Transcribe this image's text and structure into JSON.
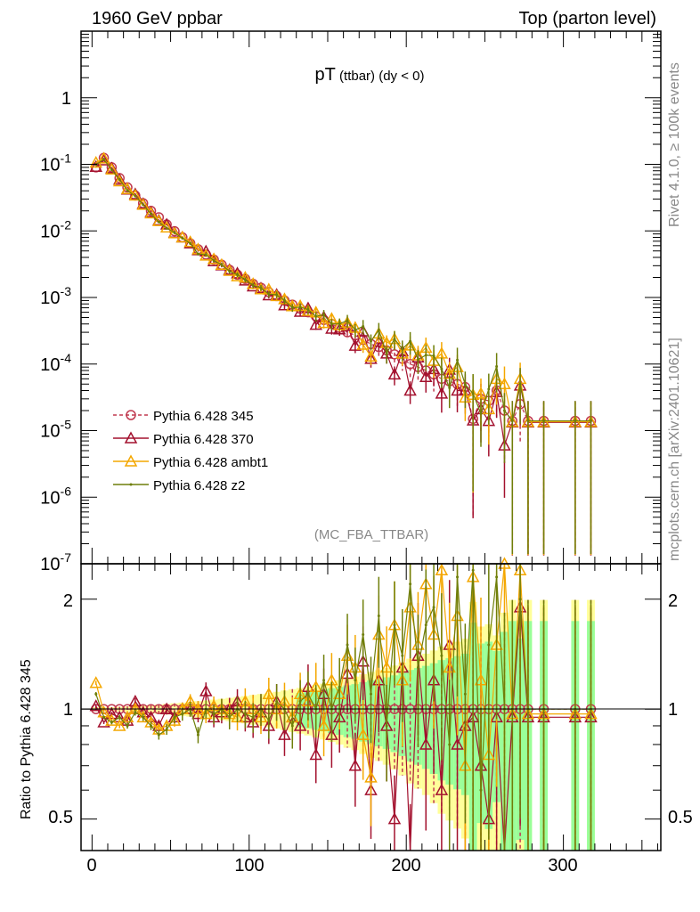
{
  "header": {
    "left": "1960 GeV ppbar",
    "right": "Top (parton level)",
    "title_main": "pT",
    "title_sub": " (ttbar) (dy < 0)",
    "side_top": "Rivet 4.1.0, ≥ 100k events",
    "side_bottom": "mcplots.cern.ch [arXiv:2401.10621]",
    "analysis": "(MC_FBA_TTBAR)"
  },
  "chart_data": {
    "type": "line",
    "xlim": [
      -7,
      362
    ],
    "ylim_main": [
      1e-07,
      10
    ],
    "ylim_ratio": [
      0.41,
      2.5
    ],
    "yscale": "log",
    "ylabel_ratio": "Ratio to Pythia 6.428 345",
    "x_ticks": [
      "0",
      "100",
      "200",
      "300"
    ],
    "y_ticks_main": [
      "1",
      "10^-1",
      "10^-2",
      "10^-3",
      "10^-4",
      "10^-5",
      "10^-6",
      "10^-7"
    ],
    "y_ticks_ratio": [
      "0.5",
      "1",
      "2"
    ],
    "legend_position": "center-left",
    "colors": {
      "ref": "#c0394f",
      "s370": "#a3112e",
      "ambt1": "#f4a700",
      "z2": "#6f7f0a",
      "band_yellow": "#ffff99",
      "band_green": "#99ff99"
    },
    "bin_width": 5,
    "x_first_center": 2.5,
    "reference": {
      "name": "Pythia 6.428 345",
      "values": [
        0.09,
        0.125,
        0.09,
        0.062,
        0.045,
        0.034,
        0.026,
        0.02,
        0.016,
        0.0125,
        0.0099,
        0.008,
        0.0065,
        0.0053,
        0.0044,
        0.0037,
        0.0031,
        0.0026,
        0.0022,
        0.0019,
        0.0016,
        0.0014,
        0.0012,
        0.00105,
        0.0009,
        0.00078,
        0.00068,
        0.0006,
        0.00052,
        0.00046,
        0.0004,
        0.00035,
        0.0003,
        0.00027,
        0.00023,
        0.0002,
        0.00018,
        0.00016,
        0.00014,
        0.00012,
        0.0001,
        9e-05,
        8e-05,
        7e-05,
        6e-05,
        5.5e-05,
        5e-05,
        4.5e-05,
        1.5e-05,
        3e-05,
        2.8e-05,
        4e-05,
        2e-05,
        1.4e-05,
        2.5e-05,
        1.4e-05,
        null,
        1.4e-05,
        null,
        null,
        null,
        1.4e-05,
        null,
        1.4e-05
      ]
    },
    "series": [
      {
        "name": "Pythia 6.428 370",
        "key": "s370",
        "marker": "triangle",
        "ratio": [
          1.02,
          0.92,
          0.97,
          0.95,
          0.93,
          1.05,
          0.98,
          0.95,
          0.9,
          1.0,
          0.95,
          1.0,
          1.0,
          0.97,
          1.12,
          0.95,
          0.98,
          1.0,
          1.05,
          0.95,
          0.92,
          0.98,
          0.9,
          1.05,
          0.85,
          0.95,
          0.9,
          1.15,
          0.75,
          1.1,
          0.85,
          0.95,
          1.25,
          0.7,
          1.35,
          0.6,
          1.2,
          0.9,
          0.5,
          1.3,
          0.4,
          1.4,
          0.8,
          1.2,
          0.6,
          1.5,
          0.8,
          0.9,
          0.95,
          0.7,
          0.5,
          0.95,
          0.3,
          0.95,
          1.9,
          0.95,
          null,
          0.95,
          null,
          null,
          null,
          0.95,
          null,
          0.95
        ]
      },
      {
        "name": "Pythia 6.428 ambt1",
        "key": "ambt1",
        "marker": "triangle",
        "ratio": [
          1.18,
          0.98,
          0.93,
          0.9,
          0.95,
          1.0,
          0.95,
          0.92,
          0.88,
          0.9,
          0.93,
          1.0,
          1.05,
          1.0,
          0.97,
          1.02,
          1.0,
          0.97,
          0.95,
          1.05,
          1.0,
          0.95,
          1.1,
          1.0,
          1.05,
          0.95,
          1.1,
          1.05,
          1.15,
          0.9,
          1.2,
          1.1,
          1.4,
          1.3,
          0.85,
          0.65,
          1.6,
          1.3,
          1.7,
          1.2,
          1.9,
          1.5,
          2.2,
          1.6,
          2.4,
          1.3,
          1.8,
          0.7,
          2.3,
          1.2,
          0.75,
          1.5,
          2.5,
          0.97,
          2.4,
          0.97,
          null,
          0.97,
          null,
          null,
          null,
          0.97,
          null,
          0.97
        ]
      },
      {
        "name": "Pythia 6.428 z2",
        "key": "z2",
        "marker": "dot",
        "ratio": [
          1.1,
          0.95,
          0.92,
          0.95,
          0.9,
          0.98,
          0.95,
          0.9,
          0.85,
          0.88,
          0.95,
          0.97,
          1.0,
          0.85,
          1.0,
          0.97,
          1.0,
          0.95,
          1.0,
          0.97,
          0.95,
          1.0,
          0.93,
          1.05,
          1.0,
          0.9,
          1.05,
          1.1,
          1.0,
          1.2,
          1.0,
          1.15,
          1.5,
          1.2,
          1.6,
          1.1,
          1.8,
          0.9,
          1.7,
          1.4,
          2.2,
          1.3,
          1.7,
          1.9,
          1.4,
          0.8,
          2.3,
          1.1,
          2.4,
          0.6,
          1.5,
          2.3,
          1.0,
          1.0,
          2.0,
          1.0,
          null,
          1.0,
          null,
          null,
          null,
          1.0,
          null,
          1.0
        ]
      }
    ],
    "legend": [
      "Pythia 6.428 345",
      "Pythia 6.428 370",
      "Pythia 6.428 ambt1",
      "Pythia 6.428 z2"
    ]
  }
}
